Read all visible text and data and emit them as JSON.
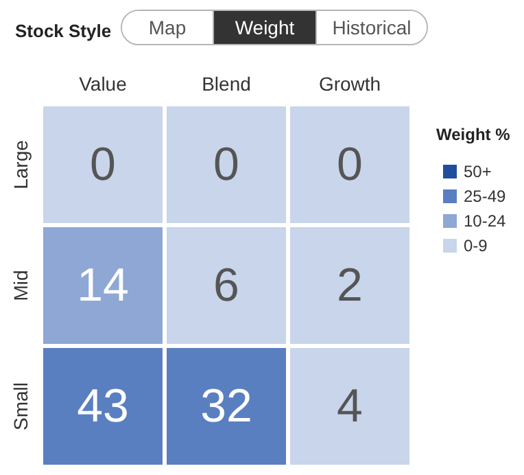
{
  "chart_data": {
    "type": "heatmap",
    "title": "Stock Style",
    "annotations": [
      "Map",
      "Weight",
      "Historical"
    ],
    "categories": [
      "Value",
      "Blend",
      "Growth"
    ],
    "y_categories": [
      "Large",
      "Mid",
      "Small"
    ],
    "cells": [
      [
        0,
        0,
        0
      ],
      [
        14,
        6,
        2
      ],
      [
        43,
        32,
        4
      ]
    ],
    "colors": [
      [
        "#c8d5ea",
        "#c8d5ea",
        "#c8d5ea"
      ],
      [
        "#8ea7d5",
        "#c8d5ea",
        "#c8d5ea"
      ],
      [
        "#5a7fc1",
        "#5a7fc1",
        "#c8d5ea"
      ]
    ],
    "data_labels": true,
    "legend_title": "Weight %",
    "legend": "right",
    "series": [
      {
        "name": "50+",
        "color": "#1f4e9e",
        "values": [
          null,
          null,
          null
        ]
      },
      {
        "name": "25-49",
        "color": "#5a7fc1",
        "values": [
          null,
          null,
          null
        ]
      },
      {
        "name": "10-24",
        "color": "#8ea7d5",
        "values": [
          null,
          null,
          null
        ]
      },
      {
        "name": "0-9",
        "color": "#c8d5ea",
        "values": [
          null,
          null,
          null
        ]
      }
    ]
  }
}
